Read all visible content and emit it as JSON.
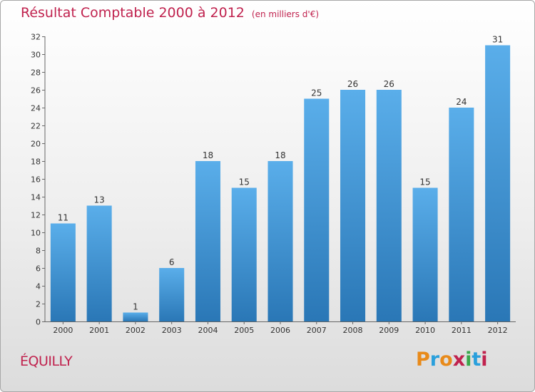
{
  "header": {
    "title": "Résultat Comptable 2000 à 2012",
    "unit": "(en milliers d'€)"
  },
  "commune": "ÉQUILLY",
  "logo": {
    "text": "Proxiti",
    "colors": [
      "#e88a1a",
      "#2aa0dc",
      "#e88a1a",
      "#c0224e",
      "#3aa84a",
      "#2aa0dc",
      "#c0224e"
    ]
  },
  "colors": {
    "bar_top": "#5aaeea",
    "bar_bottom": "#2a77b6",
    "accent": "#c0224e"
  },
  "chart_data": {
    "type": "bar",
    "title": "Résultat Comptable 2000 à 2012",
    "subtitle": "(en milliers d'€)",
    "xlabel": "",
    "ylabel": "",
    "categories": [
      "2000",
      "2001",
      "2002",
      "2003",
      "2004",
      "2005",
      "2006",
      "2007",
      "2008",
      "2009",
      "2010",
      "2011",
      "2012"
    ],
    "values": [
      11,
      13,
      1,
      6,
      18,
      15,
      18,
      25,
      26,
      26,
      15,
      24,
      31
    ],
    "ylim": [
      0,
      32
    ],
    "yticks": [
      0,
      2,
      4,
      6,
      8,
      10,
      12,
      14,
      16,
      18,
      20,
      22,
      24,
      26,
      28,
      30,
      32
    ],
    "grid": false,
    "legend": "none"
  }
}
